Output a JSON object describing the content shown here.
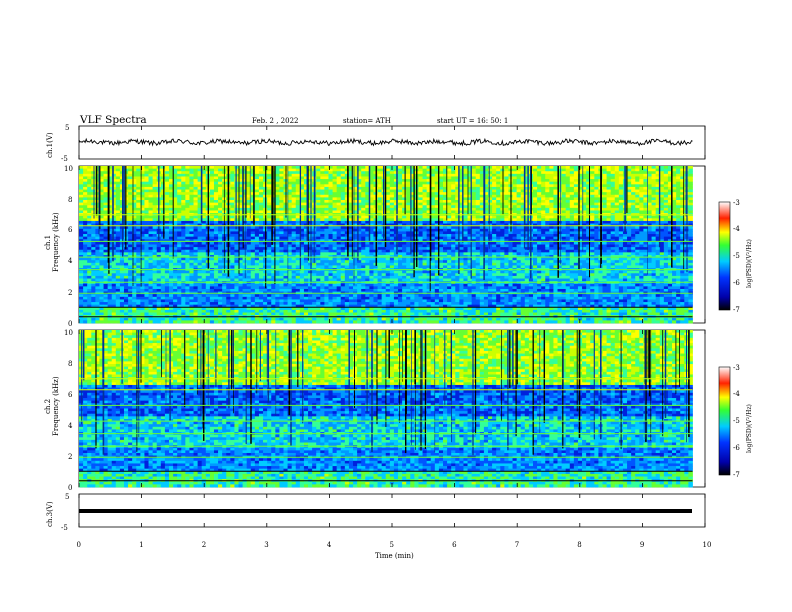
{
  "header": {
    "title": "VLF  Spectra",
    "date": "Feb. 2  , 2022",
    "station": "station= ATH",
    "start": "start  UT  =    16:  50:  1"
  },
  "chart_data": [
    {
      "type": "line",
      "name_label": "ch.1(V)",
      "ylim": [
        -5,
        5
      ],
      "yticks": [
        "5",
        "-5"
      ],
      "xlim": [
        0,
        10
      ],
      "description_values": "waveform oscillating near 0 V (approx -1 to +1 V) across 0–9.8 min"
    },
    {
      "type": "heatmap",
      "ylabel": "ch.1\nFrequency  (kHz)",
      "ylim": [
        0,
        10
      ],
      "yticks": [
        "0",
        "2",
        "4",
        "6",
        "8",
        "10"
      ],
      "xlim": [
        0,
        10
      ],
      "colorbar": {
        "label": "log(PSD)(V²/Hz)",
        "range": [
          -7,
          -3
        ],
        "ticks": [
          "-3",
          "-4",
          "-5",
          "-6",
          "-7"
        ]
      }
    },
    {
      "type": "heatmap",
      "ylabel": "ch.2\nFrequency  (kHz)",
      "ylim": [
        0,
        10
      ],
      "yticks": [
        "0",
        "2",
        "4",
        "6",
        "8",
        "10"
      ],
      "xlim": [
        0,
        10
      ],
      "colorbar": {
        "label": "log(PSD)(V²/Hz)",
        "range": [
          -7,
          -3
        ],
        "ticks": [
          "-3",
          "-4",
          "-5",
          "-6",
          "-7"
        ]
      }
    },
    {
      "type": "line",
      "name_label": "ch.3(V)",
      "ylim": [
        -5,
        5
      ],
      "yticks": [
        "5",
        "-5"
      ],
      "xlim": [
        0,
        10
      ],
      "xticks": [
        "0",
        "1",
        "2",
        "3",
        "4",
        "5",
        "6",
        "7",
        "8",
        "9",
        "10"
      ],
      "xlabel": "Time  (min)",
      "description_values": "flat line near -1.5 V across 0–9.8 min"
    }
  ],
  "axes": {
    "ch1_label": "ch.1(V)",
    "ch3_label": "ch.3(V)",
    "spec1_label_a": "ch.1",
    "spec1_label_b": "Frequency  (kHz)",
    "spec2_label_a": "ch.2",
    "spec2_label_b": "Frequency  (kHz)",
    "xlabel": "Time  (min)",
    "cb_label": "log(PSD)(V²/Hz)"
  },
  "colors": {
    "c_black": "#000000",
    "c_dblue": "#0000aa",
    "c_blue": "#0033ff",
    "c_cyan": "#00ccff",
    "c_green": "#33ff33",
    "c_yellow": "#ffff00",
    "c_red": "#ff2200",
    "c_white": "#ffffff"
  }
}
